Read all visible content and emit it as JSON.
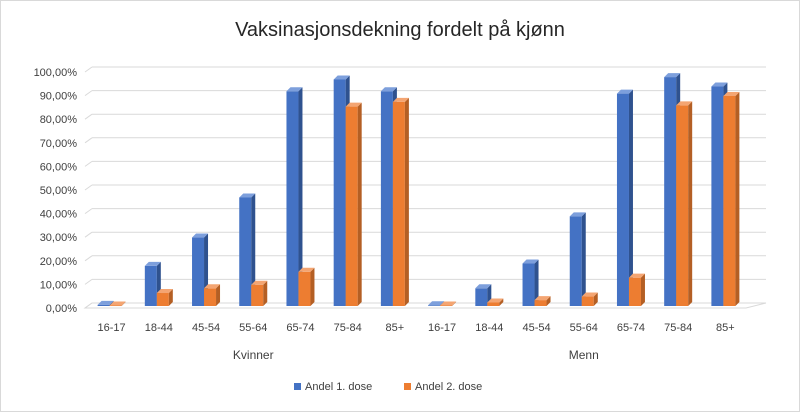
{
  "chart_data": {
    "type": "bar",
    "title": "Vaksinasjonsdekning fordelt på kjønn",
    "xlabel": "",
    "ylabel": "",
    "ylim": [
      0,
      100
    ],
    "ytick_step": 10,
    "y_tick_labels": [
      "0,00%",
      "10,00%",
      "20,00%",
      "30,00%",
      "40,00%",
      "50,00%",
      "60,00%",
      "70,00%",
      "80,00%",
      "90,00%",
      "100,00%"
    ],
    "grid": true,
    "legend_position": "bottom",
    "groups": [
      {
        "name": "Kvinner",
        "categories": [
          "16-17",
          "18-44",
          "45-54",
          "55-64",
          "65-74",
          "75-84",
          "85+"
        ]
      },
      {
        "name": "Menn",
        "categories": [
          "16-17",
          "18-44",
          "45-54",
          "55-64",
          "65-74",
          "75-84",
          "85+"
        ]
      }
    ],
    "series": [
      {
        "name": "Andel 1. dose",
        "color": "#4472c4",
        "side_color": "#2f528f",
        "top_color": "#7d9fdc",
        "values": [
          0.5,
          17,
          29,
          46,
          91,
          96,
          91,
          0.3,
          7.5,
          18,
          38,
          90,
          97,
          93
        ]
      },
      {
        "name": "Andel 2. dose",
        "color": "#ed7d31",
        "side_color": "#b45f24",
        "top_color": "#f4a572",
        "values": [
          0.2,
          5.5,
          7.5,
          9,
          14.5,
          84.5,
          86.5,
          0.2,
          1.5,
          2.5,
          4,
          12,
          85,
          89
        ]
      }
    ]
  }
}
